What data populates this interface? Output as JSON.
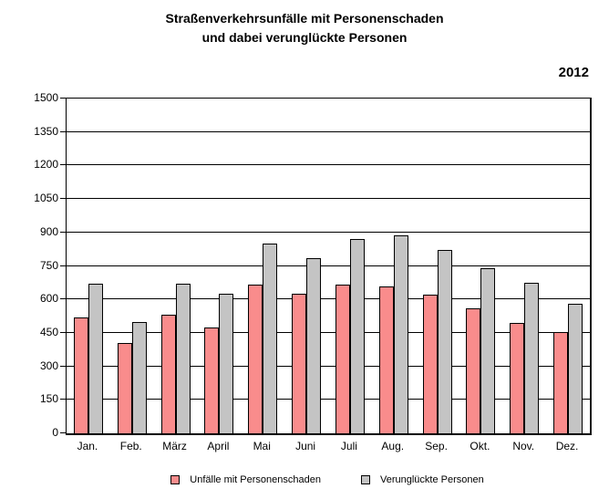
{
  "title": {
    "line1": "Straßenverkehrsunfälle mit Personenschaden",
    "line2": "und dabei verunglückte Personen"
  },
  "year_label": "2012",
  "legend": [
    {
      "label": "Unfälle mit Personenschaden",
      "color": "#f98c8c"
    },
    {
      "label": "Verunglückte Personen",
      "color": "#c4c4c4"
    }
  ],
  "colors": {
    "accidents_bar": "#f98c8c",
    "casualties_bar": "#c4c4c4",
    "bar_border": "#000000",
    "grid": "#000000",
    "text": "#000000",
    "background": "#ffffff"
  },
  "chart_data": {
    "type": "bar",
    "title": "Straßenverkehrsunfälle mit Personenschaden und dabei verunglückte Personen",
    "subtitle": "2012",
    "categories": [
      "Jan.",
      "Feb.",
      "März",
      "April",
      "Mai",
      "Juni",
      "Juli",
      "Aug.",
      "Sep.",
      "Okt.",
      "Nov.",
      "Dez."
    ],
    "series": [
      {
        "name": "Unfälle mit Personenschaden",
        "color": "#f98c8c",
        "values": [
          520,
          405,
          530,
          475,
          665,
          625,
          665,
          660,
          620,
          560,
          495,
          455
        ]
      },
      {
        "name": "Verunglückte Personen",
        "color": "#c4c4c4",
        "values": [
          670,
          500,
          670,
          625,
          850,
          785,
          870,
          885,
          820,
          740,
          675,
          580
        ]
      }
    ],
    "xlabel": "",
    "ylabel": "",
    "ylim": [
      0,
      1500
    ],
    "ytick_step": 150,
    "yticks": [
      0,
      150,
      300,
      450,
      600,
      750,
      900,
      1050,
      1200,
      1350,
      1500
    ],
    "grid": true,
    "legend_position": "bottom"
  }
}
